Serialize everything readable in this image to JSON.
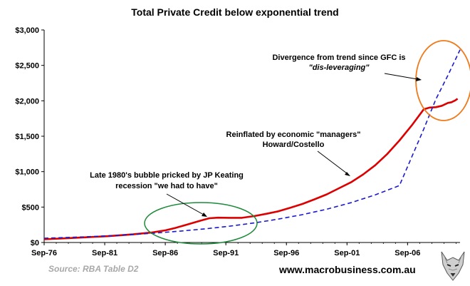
{
  "chart_data": {
    "type": "line",
    "title": "Total Private Credit below exponential trend",
    "xlabel": "",
    "ylabel": "",
    "ylim": [
      0,
      3000
    ],
    "y_ticks": [
      0,
      500,
      1000,
      1500,
      2000,
      2500,
      3000
    ],
    "y_tick_labels": [
      "$0",
      "$500",
      "$1,000",
      "$1,500",
      "$2,000",
      "$2,500",
      "$3,000"
    ],
    "xlim": [
      1976.67,
      2011.0
    ],
    "x_ticks": [
      1976.67,
      1981.67,
      1986.67,
      1991.67,
      1996.67,
      2001.67,
      2006.67
    ],
    "x_tick_labels": [
      "Sep-76",
      "Sep-81",
      "Sep-86",
      "Sep-91",
      "Sep-96",
      "Sep-01",
      "Sep-06"
    ],
    "grid": false,
    "series": [
      {
        "name": "Total Private Credit",
        "style": "solid",
        "color": "#dd0000",
        "x": [
          1976.67,
          1978,
          1980,
          1982,
          1984,
          1985.5,
          1986.7,
          1987.5,
          1988.5,
          1989.5,
          1990.3,
          1991,
          1992,
          1993,
          1994,
          1995,
          1996,
          1997,
          1998,
          1999,
          2000,
          2001,
          2002,
          2003,
          2004,
          2005,
          2006,
          2007,
          2008,
          2008.5,
          2009,
          2009.5,
          2010,
          2010.3,
          2010.6,
          2010.8
        ],
        "values": [
          45,
          56,
          72,
          90,
          115,
          140,
          172,
          205,
          255,
          305,
          342,
          350,
          348,
          348,
          372,
          405,
          440,
          490,
          545,
          610,
          680,
          765,
          850,
          960,
          1090,
          1250,
          1440,
          1650,
          1880,
          1905,
          1910,
          1930,
          1970,
          1980,
          2005,
          2030
        ]
      },
      {
        "name": "Exponential trend",
        "style": "dashed",
        "color": "#1a1acc",
        "x": [
          1976.67,
          1978,
          1980,
          1982,
          1984,
          1986,
          1988,
          1990,
          1992,
          1994,
          1996,
          1998,
          2000,
          2002,
          2004,
          2006,
          2008,
          2009,
          2010,
          2011
        ],
        "values": [
          60,
          67,
          80,
          95,
          113,
          135,
          162,
          193,
          231,
          276,
          330,
          394,
          470,
          562,
          672,
          803,
          1600,
          2020,
          2360,
          2720
        ]
      }
    ],
    "annotations": [
      {
        "line1": "Divergence from trend since GFC is",
        "line2": "\"dis-leveraging\""
      },
      {
        "line1": "Reinflated by economic \"managers\"",
        "line2": "Howard/Costello"
      },
      {
        "line1": "Late 1980's bubble pricked by JP Keating",
        "line2": "recession \"we had to have\""
      }
    ]
  },
  "footer": {
    "source": "Source: RBA Table D2",
    "website": "www.macrobusiness.com.au"
  },
  "colors": {
    "axis": "#000000",
    "ellipse_green": "#1e8a3a",
    "ellipse_orange": "#f07a1a",
    "source_text": "#a8a8a8"
  }
}
